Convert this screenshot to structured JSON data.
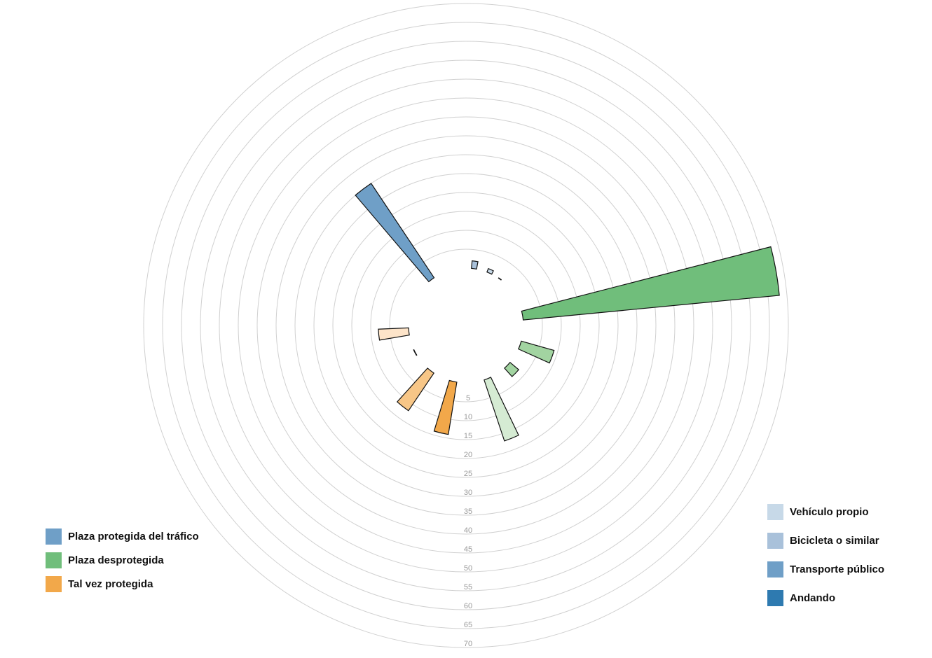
{
  "chart_data": {
    "type": "radial-bar",
    "title": "",
    "radial_ticks": [
      "5",
      "10",
      "15",
      "20",
      "25",
      "30",
      "35",
      "40",
      "45",
      "50",
      "55",
      "60",
      "65",
      "70"
    ],
    "radial_range": [
      0,
      70
    ],
    "grid": true,
    "bars": [
      {
        "name": "Plaza protegida del tráfico - Bicicleta o similar",
        "group": "Plaza protegida del tráfico",
        "mode": "Bicicleta o similar",
        "value": 2,
        "color": "#a9c1da"
      },
      {
        "name": "Plaza protegida del tráfico - Vehículo propio",
        "group": "Plaza protegida del tráfico",
        "mode": "Vehículo propio",
        "value": 1,
        "color": "#c7d9e8"
      },
      {
        "name": "Plaza protegida del tráfico - Andando",
        "group": "Plaza protegida del tráfico",
        "mode": "Andando",
        "value": 0.1,
        "color": "#2e7ab0"
      },
      {
        "name": "Plaza desprotegida - Transporte público",
        "group": "Plaza desprotegida",
        "mode": "Transporte público",
        "value": 68,
        "color": "#70be7b"
      },
      {
        "name": "Plaza desprotegida - Bicicleta o similar",
        "group": "Plaza desprotegida",
        "mode": "Bicicleta o similar",
        "value": 9,
        "color": "#a2d4a1"
      },
      {
        "name": "Plaza desprotegida - Vehículo propio",
        "group": "Plaza desprotegida",
        "mode": "Vehículo propio",
        "value": 3,
        "color": "#a2d4a1"
      },
      {
        "name": "Plaza desprotegida - Andando",
        "group": "Plaza desprotegida",
        "mode": "Andando",
        "value": 17,
        "color": "#d5ebd3"
      },
      {
        "name": "Tal vez protegida - Transporte público",
        "group": "Tal vez protegida",
        "mode": "Transporte público",
        "value": 14,
        "color": "#f2a84a"
      },
      {
        "name": "Tal vez protegida - Bicicleta o similar",
        "group": "Tal vez protegida",
        "mode": "Bicicleta o similar",
        "value": 12,
        "color": "#f7c687"
      },
      {
        "name": "Tal vez protegida - Andando",
        "group": "Tal vez protegida",
        "mode": "Andando",
        "value": 0.1,
        "color": "#e07a3a"
      },
      {
        "name": "Tal vez protegida - Vehículo propio",
        "group": "Tal vez protegida",
        "mode": "Vehículo propio",
        "value": 8,
        "color": "#fde4c9"
      },
      {
        "name": "Plaza protegida del tráfico - Transporte público",
        "group": "Plaza protegida del tráfico",
        "mode": "Transporte público",
        "value": 30,
        "color": "#6f9fc7"
      }
    ]
  },
  "legend_left": [
    {
      "label": "Plaza protegida del tráfico",
      "color": "#6f9fc7"
    },
    {
      "label": "Plaza desprotegida",
      "color": "#70be7b"
    },
    {
      "label": "Tal vez protegida",
      "color": "#f2a84a"
    }
  ],
  "legend_right": [
    {
      "label": "Vehículo propio",
      "color": "#c7d9e8"
    },
    {
      "label": "Bicicleta o similar",
      "color": "#a9c1da"
    },
    {
      "label": "Transporte público",
      "color": "#6f9fc7"
    },
    {
      "label": "Andando",
      "color": "#2e7ab0"
    }
  ]
}
